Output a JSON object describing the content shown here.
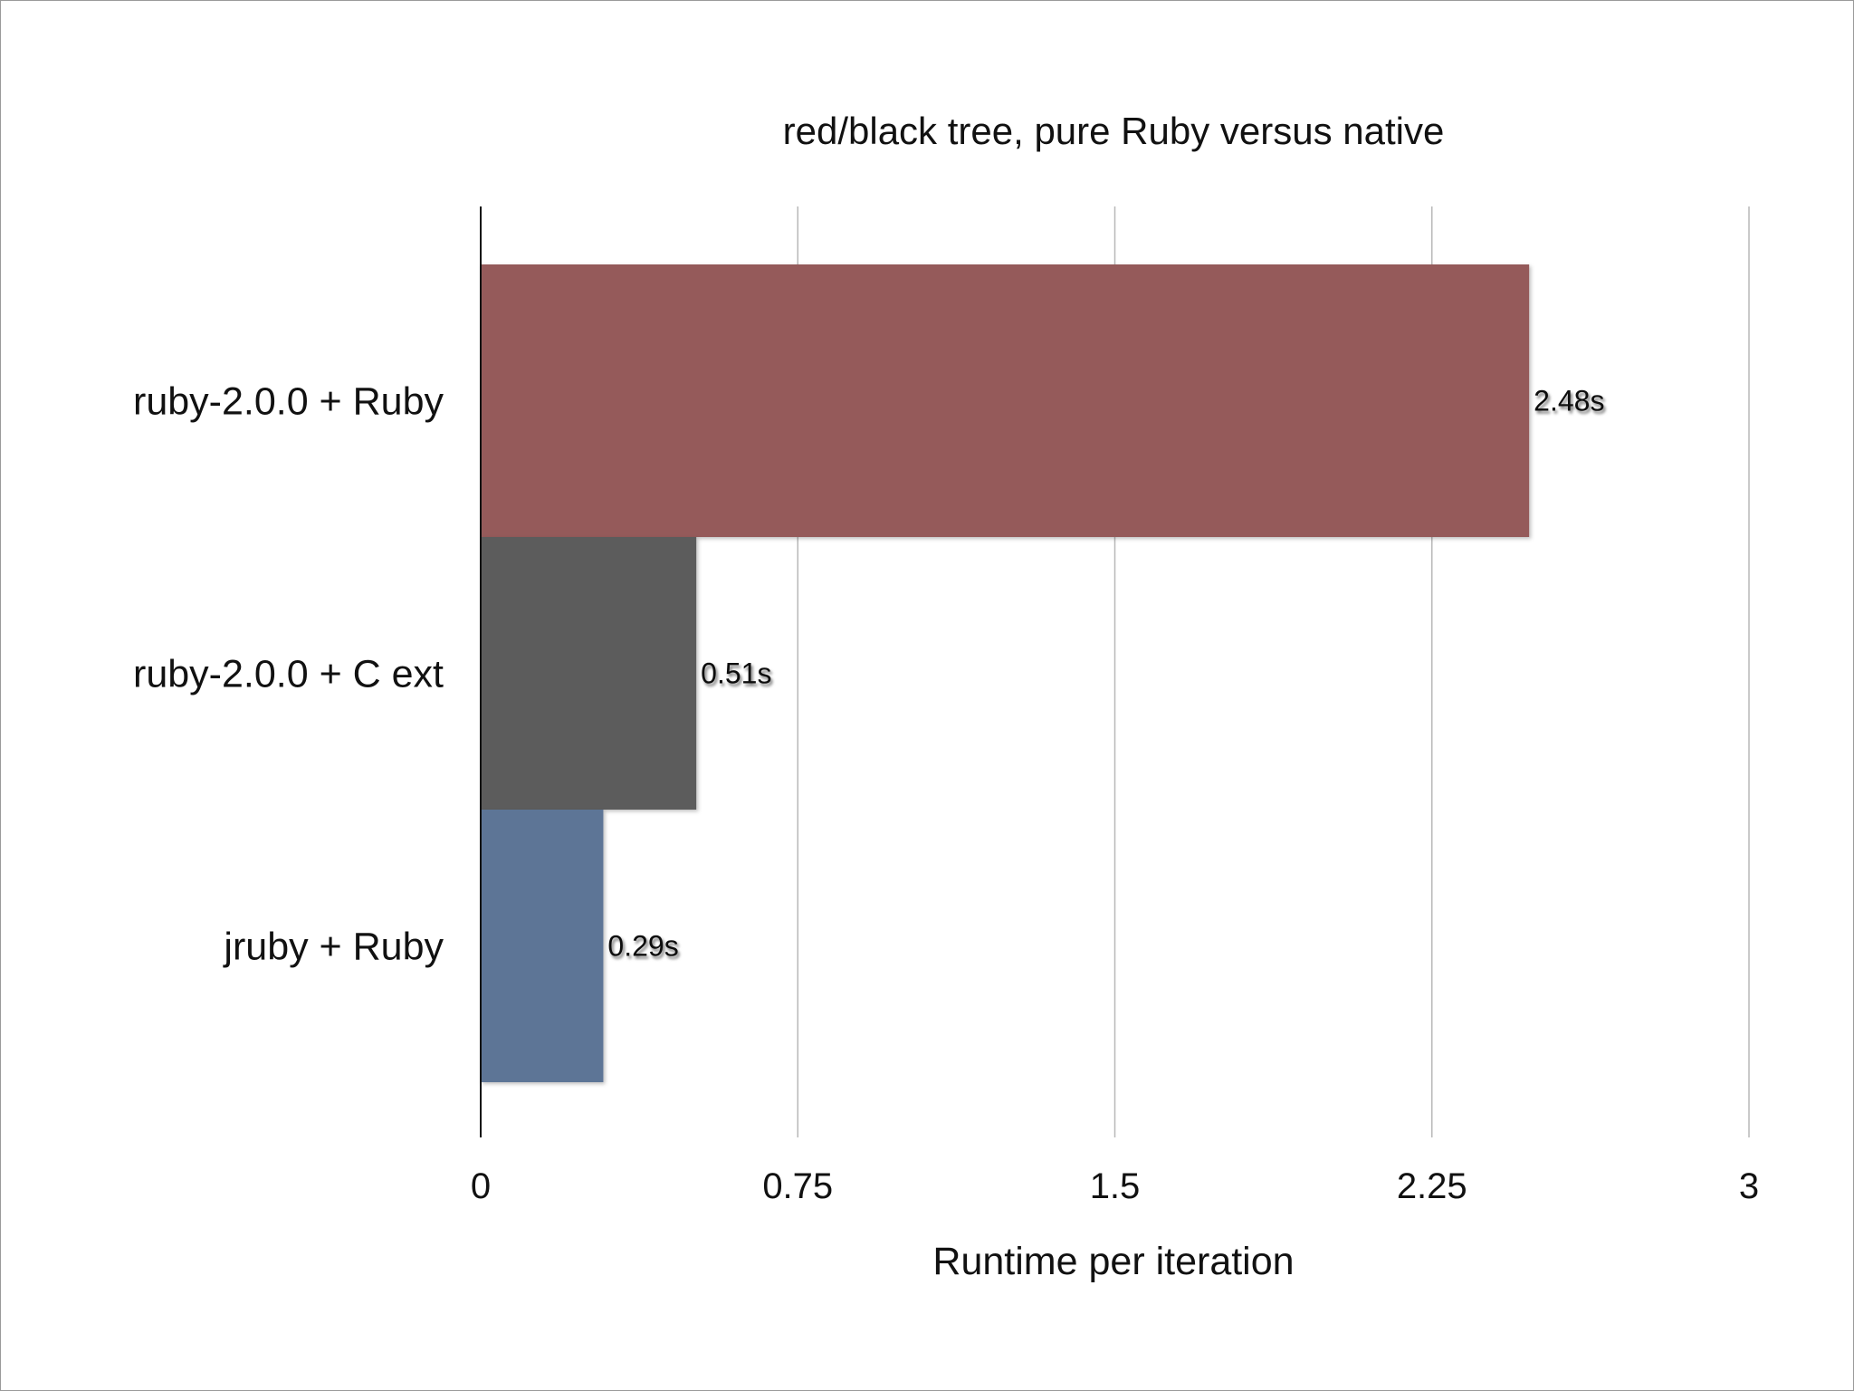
{
  "chart_data": {
    "type": "bar",
    "orientation": "horizontal",
    "title": "red/black tree, pure Ruby versus native",
    "xlabel": "Runtime per iteration",
    "ylabel": "",
    "categories": [
      "ruby-2.0.0 + Ruby",
      "ruby-2.0.0 + C ext",
      "jruby + Ruby"
    ],
    "values": [
      2.48,
      0.51,
      0.29
    ],
    "data_labels": [
      "2.48s",
      "0.51s",
      "0.29s"
    ],
    "bar_colors": [
      "#955a5a",
      "#5b5b5b",
      "#5d7596"
    ],
    "xlim": [
      0,
      3
    ],
    "xticks": [
      0,
      0.75,
      1.5,
      2.25,
      3
    ],
    "xtick_labels": [
      "0",
      "0.75",
      "1.5",
      "2.25",
      "3"
    ],
    "grid": true,
    "legend": "none"
  }
}
